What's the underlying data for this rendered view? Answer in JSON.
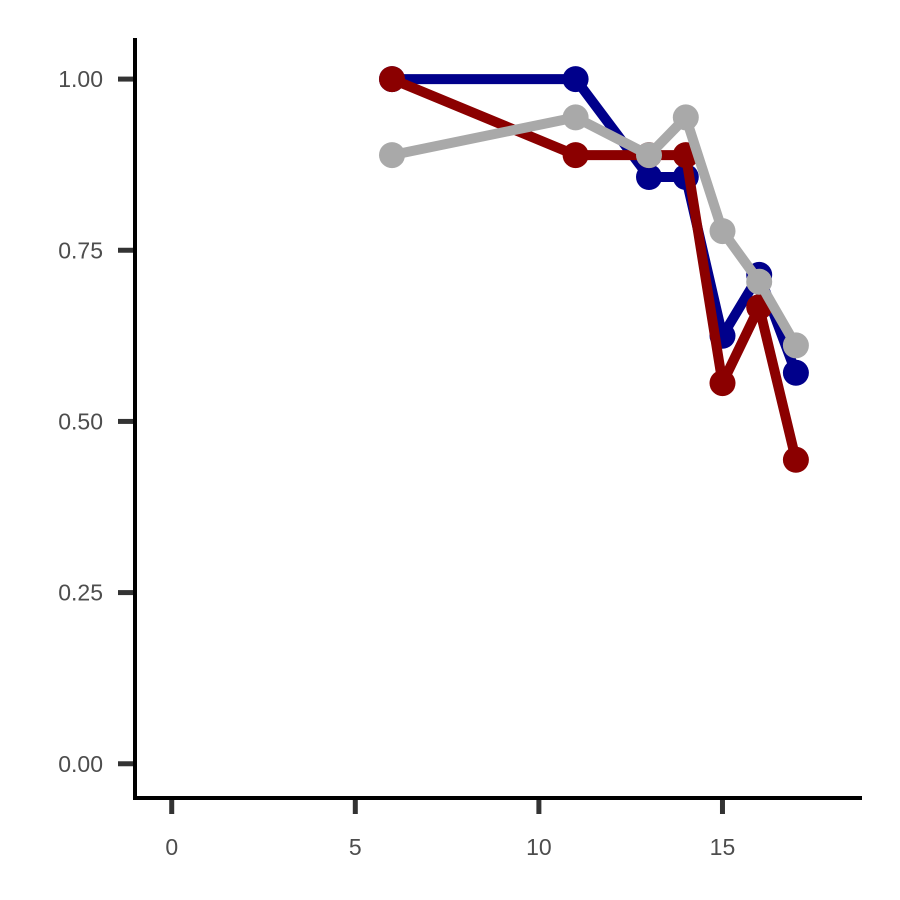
{
  "chart_data": {
    "type": "line",
    "title": "",
    "xlabel": "",
    "ylabel": "",
    "xlim": [
      -1,
      18.8
    ],
    "ylim": [
      -0.05,
      1.06
    ],
    "x_ticks": [
      0,
      5,
      10,
      15
    ],
    "y_ticks": [
      0.0,
      0.25,
      0.5,
      0.75,
      1.0
    ],
    "x_tick_labels": [
      "0",
      "5",
      "10",
      "15"
    ],
    "y_tick_labels": [
      "0.00",
      "0.25",
      "0.50",
      "0.75",
      "1.00"
    ],
    "grid": false,
    "legend": "none",
    "series": [
      {
        "color": "#00008b",
        "x": [
          6,
          11,
          13,
          14,
          15,
          16,
          17
        ],
        "y": [
          1.0,
          1.0,
          0.857,
          0.857,
          0.625,
          0.714,
          0.571
        ]
      },
      {
        "color": "#8b0000",
        "x": [
          6,
          11,
          13,
          14,
          15,
          16,
          17
        ],
        "y": [
          1.0,
          0.889,
          0.889,
          0.889,
          0.556,
          0.667,
          0.444
        ]
      },
      {
        "color": "#a9a9a9",
        "x": [
          6,
          11,
          13,
          14,
          15,
          16,
          17
        ],
        "y": [
          0.889,
          0.944,
          0.889,
          0.944,
          0.778,
          0.704,
          0.611
        ]
      }
    ]
  }
}
